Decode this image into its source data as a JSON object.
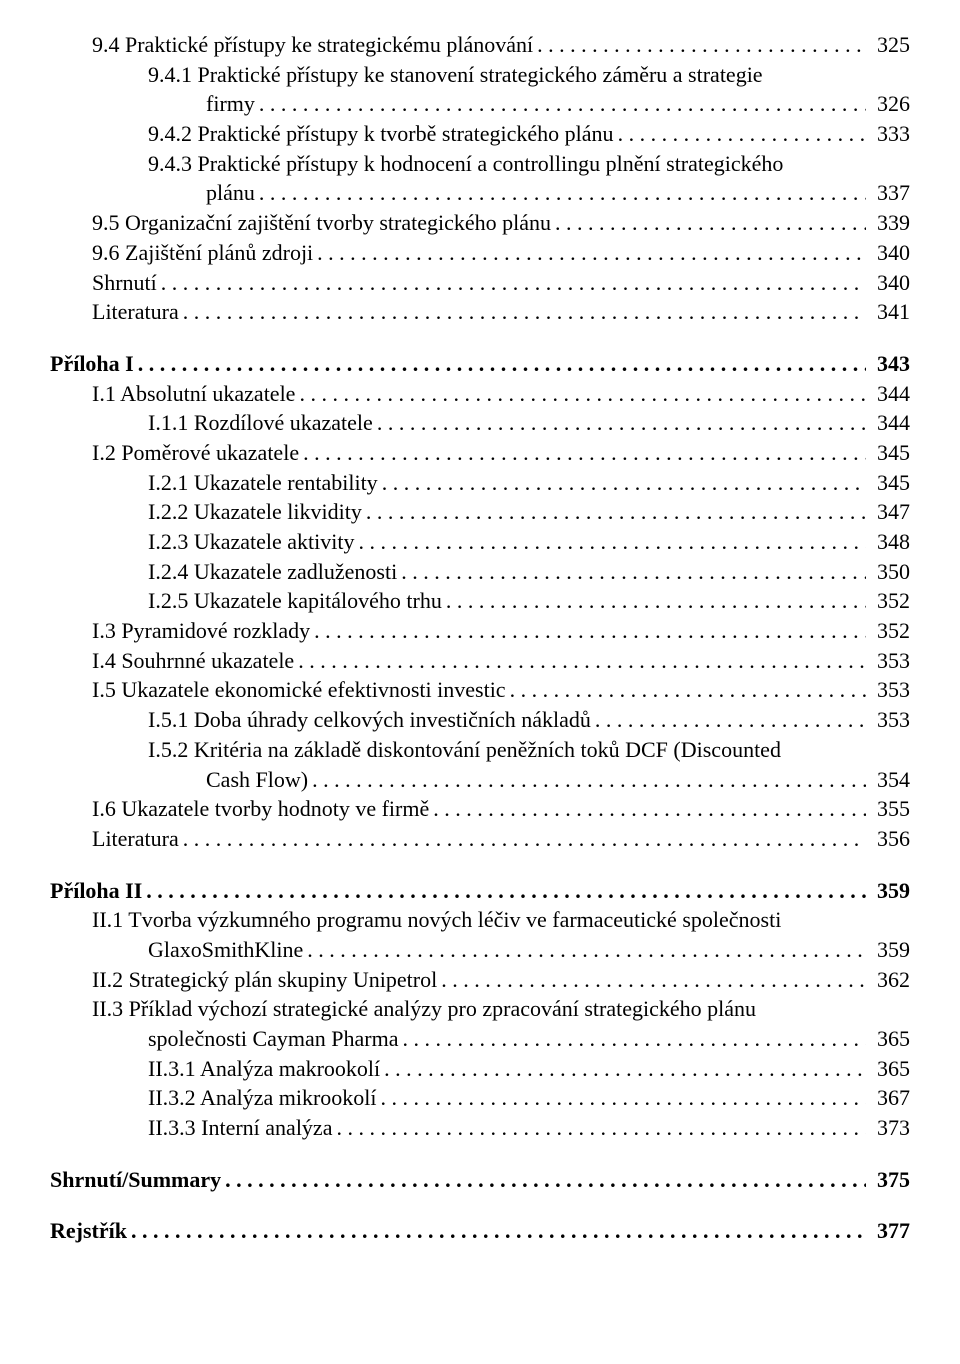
{
  "entries": [
    {
      "indent": 1,
      "bold": false,
      "num": "9.4",
      "text": "Praktické přístupy ke strategickému plánování",
      "page": "325"
    },
    {
      "indent": 2,
      "bold": false,
      "num": "9.4.1",
      "text": "Praktické přístupy ke stanovení strategického záměru a strategie",
      "cont": "firmy",
      "page": "326"
    },
    {
      "indent": 2,
      "bold": false,
      "num": "9.4.2",
      "text": "Praktické přístupy k tvorbě strategického plánu",
      "page": "333"
    },
    {
      "indent": 2,
      "bold": false,
      "num": "9.4.3",
      "text": "Praktické přístupy k hodnocení a controllingu plnění strategického",
      "cont": "plánu",
      "page": "337"
    },
    {
      "indent": 1,
      "bold": false,
      "num": "9.5",
      "text": "Organizační zajištění tvorby strategického plánu",
      "page": "339"
    },
    {
      "indent": 1,
      "bold": false,
      "num": "9.6",
      "text": "Zajištění plánů zdroji",
      "page": "340"
    },
    {
      "indent": 1,
      "bold": false,
      "num": "",
      "text": "Shrnutí",
      "page": "340"
    },
    {
      "indent": 1,
      "bold": false,
      "num": "",
      "text": "Literatura",
      "page": "341"
    },
    {
      "spacer": true
    },
    {
      "indent": 0,
      "bold": true,
      "num": "",
      "text": "Příloha I",
      "page": "343"
    },
    {
      "indent": 1,
      "bold": false,
      "num": "I.1",
      "text": "Absolutní ukazatele",
      "page": "344"
    },
    {
      "indent": 2,
      "bold": false,
      "num": "I.1.1",
      "text": "Rozdílové ukazatele",
      "page": "344"
    },
    {
      "indent": 1,
      "bold": false,
      "num": "I.2",
      "text": "Poměrové ukazatele",
      "page": "345"
    },
    {
      "indent": 2,
      "bold": false,
      "num": "I.2.1",
      "text": "Ukazatele rentability",
      "page": "345"
    },
    {
      "indent": 2,
      "bold": false,
      "num": "I.2.2",
      "text": "Ukazatele likvidity",
      "page": "347"
    },
    {
      "indent": 2,
      "bold": false,
      "num": "I.2.3",
      "text": "Ukazatele aktivity",
      "page": "348"
    },
    {
      "indent": 2,
      "bold": false,
      "num": "I.2.4",
      "text": "Ukazatele zadluženosti",
      "page": "350"
    },
    {
      "indent": 2,
      "bold": false,
      "num": "I.2.5",
      "text": "Ukazatele kapitálového trhu",
      "page": "352"
    },
    {
      "indent": 1,
      "bold": false,
      "num": "I.3",
      "text": "Pyramidové rozklady",
      "page": "352"
    },
    {
      "indent": 1,
      "bold": false,
      "num": "I.4",
      "text": "Souhrnné ukazatele",
      "page": "353"
    },
    {
      "indent": 1,
      "bold": false,
      "num": "I.5",
      "text": "Ukazatele ekonomické efektivnosti investic",
      "page": "353"
    },
    {
      "indent": 2,
      "bold": false,
      "num": "I.5.1",
      "text": "Doba úhrady celkových investičních nákladů",
      "page": "353"
    },
    {
      "indent": 2,
      "bold": false,
      "num": "I.5.2",
      "text": "Kritéria na základě diskontování peněžních toků DCF (Discounted",
      "cont": "Cash Flow)",
      "page": "354"
    },
    {
      "indent": 1,
      "bold": false,
      "num": "I.6",
      "text": "Ukazatele tvorby hodnoty ve firmě",
      "page": "355"
    },
    {
      "indent": 1,
      "bold": false,
      "num": "",
      "text": "Literatura",
      "page": "356"
    },
    {
      "spacer": true
    },
    {
      "indent": 0,
      "bold": true,
      "num": "",
      "text": "Příloha II",
      "page": "359"
    },
    {
      "indent": 1,
      "bold": false,
      "num": "II.1",
      "text": "Tvorba výzkumného programu nových léčiv ve farmaceutické společnosti",
      "cont": "GlaxoSmithKline",
      "page": "359"
    },
    {
      "indent": 1,
      "bold": false,
      "num": "II.2",
      "text": "Strategický plán skupiny Unipetrol",
      "page": "362"
    },
    {
      "indent": 1,
      "bold": false,
      "num": "II.3",
      "text": "Příklad výchozí strategické analýzy pro zpracování strategického plánu",
      "cont": "společnosti Cayman Pharma",
      "page": "365"
    },
    {
      "indent": 2,
      "bold": false,
      "num": "II.3.1",
      "text": "Analýza makrookolí",
      "page": "365"
    },
    {
      "indent": 2,
      "bold": false,
      "num": "II.3.2",
      "text": "Analýza mikrookolí",
      "page": "367"
    },
    {
      "indent": 2,
      "bold": false,
      "num": "II.3.3",
      "text": "Interní analýza",
      "page": "373"
    },
    {
      "spacer": true
    },
    {
      "indent": 0,
      "bold": true,
      "num": "",
      "text": "Shrnutí/Summary",
      "page": "375"
    },
    {
      "spacer": true
    },
    {
      "indent": 0,
      "bold": true,
      "num": "",
      "text": "Rejstřík",
      "page": "377"
    }
  ]
}
